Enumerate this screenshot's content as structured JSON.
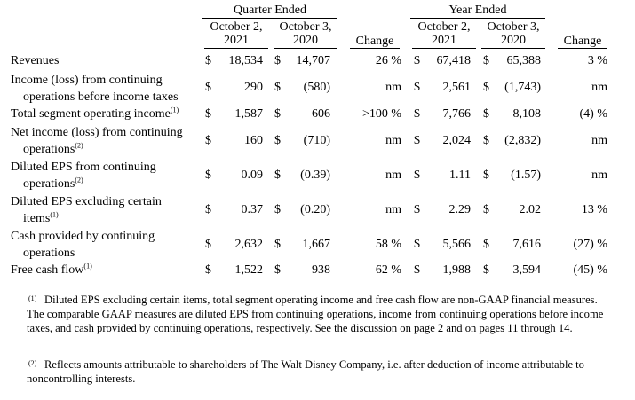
{
  "headers": {
    "quarter_group": "Quarter Ended",
    "year_group": "Year Ended",
    "q_col1": [
      "October 2,",
      "2021"
    ],
    "q_col2": [
      "October 3,",
      "2020"
    ],
    "y_col1": [
      "October 2,",
      "2021"
    ],
    "y_col2": [
      "October 3,",
      "2020"
    ],
    "change": "Change"
  },
  "rows": [
    {
      "label": [
        "Revenues"
      ],
      "sup": "",
      "q1": [
        "$",
        "18,534"
      ],
      "q2": [
        "$",
        "14,707"
      ],
      "qchg": "26 %",
      "y1": [
        "$",
        "67,418"
      ],
      "y2": [
        "$",
        "65,388"
      ],
      "ychg": "3 %"
    },
    {
      "label": [
        "Income (loss) from continuing",
        "operations before income taxes"
      ],
      "sup": "",
      "q1": [
        "$",
        "290"
      ],
      "q2": [
        "$",
        "(580)"
      ],
      "qchg": "nm",
      "y1": [
        "$",
        "2,561"
      ],
      "y2": [
        "$",
        "(1,743)"
      ],
      "ychg": "nm"
    },
    {
      "label": [
        "Total segment operating income"
      ],
      "sup": "(1)",
      "q1": [
        "$",
        "1,587"
      ],
      "q2": [
        "$",
        "606"
      ],
      "qchg": ">100 %",
      "y1": [
        "$",
        "7,766"
      ],
      "y2": [
        "$",
        "8,108"
      ],
      "ychg": "(4) %"
    },
    {
      "label": [
        "Net income (loss) from continuing",
        "operations"
      ],
      "sup": "(2)",
      "q1": [
        "$",
        "160"
      ],
      "q2": [
        "$",
        "(710)"
      ],
      "qchg": "nm",
      "y1": [
        "$",
        "2,024"
      ],
      "y2": [
        "$",
        "(2,832)"
      ],
      "ychg": "nm"
    },
    {
      "label": [
        "Diluted EPS from continuing",
        "operations"
      ],
      "sup": "(2)",
      "q1": [
        "$",
        "0.09"
      ],
      "q2": [
        "$",
        "(0.39)"
      ],
      "qchg": "nm",
      "y1": [
        "$",
        "1.11"
      ],
      "y2": [
        "$",
        "(1.57)"
      ],
      "ychg": "nm"
    },
    {
      "label": [
        "Diluted EPS excluding certain",
        "items"
      ],
      "sup": "(1)",
      "q1": [
        "$",
        "0.37"
      ],
      "q2": [
        "$",
        "(0.20)"
      ],
      "qchg": "nm",
      "y1": [
        "$",
        "2.29"
      ],
      "y2": [
        "$",
        "2.02"
      ],
      "ychg": "13 %"
    },
    {
      "label": [
        "Cash provided by continuing",
        "operations"
      ],
      "sup": "",
      "q1": [
        "$",
        "2,632"
      ],
      "q2": [
        "$",
        "1,667"
      ],
      "qchg": "58 %",
      "y1": [
        "$",
        "5,566"
      ],
      "y2": [
        "$",
        "7,616"
      ],
      "ychg": "(27) %"
    },
    {
      "label": [
        "Free cash flow"
      ],
      "sup": "(1)",
      "q1": [
        "$",
        "1,522"
      ],
      "q2": [
        "$",
        "938"
      ],
      "qchg": "62 %",
      "y1": [
        "$",
        "1,988"
      ],
      "y2": [
        "$",
        "3,594"
      ],
      "ychg": "(45) %"
    }
  ],
  "footnotes": [
    {
      "mark": "(1)",
      "text": "Diluted EPS excluding certain items, total segment operating income and free cash flow are non-GAAP financial measures. The comparable GAAP measures are diluted EPS from continuing operations, income from continuing operations before income taxes, and cash provided by continuing operations, respectively. See the discussion on page 2 and on pages 11 through 14."
    },
    {
      "mark": "(2)",
      "text": "Reflects amounts attributable to shareholders of The Walt Disney Company, i.e. after deduction of income attributable to noncontrolling interests."
    }
  ]
}
